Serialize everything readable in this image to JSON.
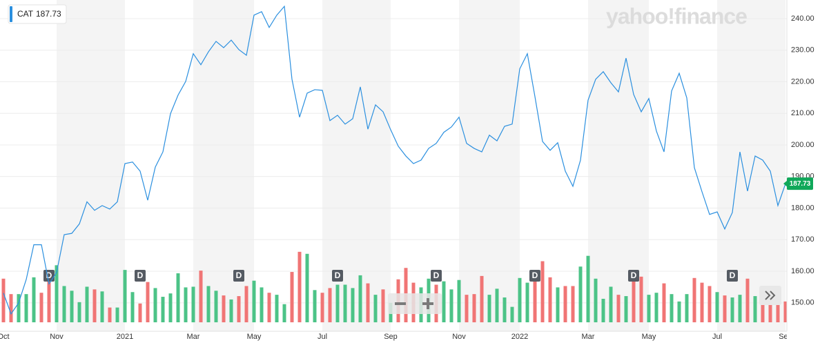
{
  "chart_data": {
    "type": "line",
    "watermark": "yahoo!finance",
    "categories": [
      "Oct",
      null,
      null,
      null,
      null,
      null,
      null,
      "Nov",
      null,
      null,
      null,
      null,
      null,
      null,
      null,
      null,
      "2021",
      null,
      null,
      null,
      null,
      null,
      null,
      null,
      null,
      "Mar",
      null,
      null,
      null,
      null,
      null,
      null,
      null,
      "May",
      null,
      null,
      null,
      null,
      null,
      null,
      null,
      null,
      "Jul",
      null,
      null,
      null,
      null,
      null,
      null,
      null,
      null,
      "Sep",
      null,
      null,
      null,
      null,
      null,
      null,
      null,
      null,
      "Nov",
      null,
      null,
      null,
      null,
      null,
      null,
      null,
      "2022",
      null,
      null,
      null,
      null,
      null,
      null,
      null,
      null,
      "Mar",
      null,
      null,
      null,
      null,
      null,
      null,
      null,
      "May",
      null,
      null,
      null,
      null,
      null,
      null,
      null,
      null,
      "Jul",
      null,
      null,
      null,
      null,
      null,
      null,
      null,
      null,
      "Sep"
    ],
    "series": [
      {
        "name": "CAT",
        "color": "#2a8fdf",
        "values": [
          153.1,
          146.5,
          150,
          157.4,
          168.4,
          168.4,
          156,
          159.6,
          171.6,
          172,
          175,
          182,
          179.3,
          180.8,
          179.7,
          182,
          194.1,
          194.6,
          191.7,
          182.5,
          193,
          197.8,
          209.9,
          215.8,
          220.1,
          228.9,
          225.4,
          229.5,
          232.8,
          230.8,
          233.2,
          230.2,
          228.4,
          241.1,
          242.2,
          237.2,
          241.1,
          243.9,
          220.8,
          208.8,
          216.4,
          217.5,
          217.3,
          207.7,
          209.4,
          206.6,
          208.3,
          218.4,
          205,
          212.7,
          210.5,
          204.8,
          199.6,
          196.5,
          194.1,
          195.2,
          198.9,
          200.5,
          204,
          205.7,
          208.8,
          200.5,
          198.9,
          197.8,
          203.1,
          201.3,
          205.9,
          206.6,
          224.1,
          228.9,
          215.3,
          201.1,
          198.3,
          200.7,
          191.7,
          186.9,
          195.2,
          214.2,
          220.8,
          223.2,
          219.7,
          216.8,
          227.5,
          216,
          210.5,
          214.7,
          204.4,
          197.8,
          217.1,
          222.7,
          214.9,
          192.8,
          185.2,
          178,
          178.8,
          173.4,
          178.6,
          197.8,
          185.4,
          196.5,
          195.2,
          191.7,
          180.8,
          187.73
        ]
      }
    ],
    "last_price_color": "#10a85a",
    "volume": {
      "ylim": [
        0,
        110
      ],
      "values": [
        65,
        42,
        42,
        42,
        67,
        44,
        62,
        85,
        54,
        47,
        30,
        53,
        49,
        46,
        22,
        22,
        78,
        45,
        28,
        60,
        51,
        38,
        43,
        73,
        52,
        53,
        77,
        54,
        47,
        40,
        34,
        39,
        54,
        62,
        52,
        44,
        41,
        27,
        75,
        105,
        102,
        48,
        44,
        51,
        56,
        56,
        51,
        70,
        58,
        41,
        49,
        29,
        64,
        81,
        59,
        52,
        65,
        56,
        61,
        49,
        63,
        41,
        42,
        69,
        41,
        50,
        37,
        23,
        66,
        59,
        71,
        91,
        67,
        52,
        54,
        54,
        83,
        99,
        65,
        35,
        53,
        41,
        39,
        70,
        68,
        41,
        44,
        58,
        42,
        31,
        42,
        66,
        59,
        54,
        45,
        40,
        37,
        41,
        65,
        39,
        30,
        31,
        31,
        31
      ],
      "colors": [
        "#f07575",
        "#f07575",
        "#4cc387",
        "#4cc387",
        "#4cc387",
        "#f07575",
        "#f07575",
        "#4cc387",
        "#4cc387",
        "#4cc387",
        "#4cc387",
        "#4cc387",
        "#f07575",
        "#4cc387",
        "#f07575",
        "#4cc387",
        "#4cc387",
        "#4cc387",
        "#f07575",
        "#f07575",
        "#4cc387",
        "#4cc387",
        "#4cc387",
        "#4cc387",
        "#4cc387",
        "#4cc387",
        "#f07575",
        "#4cc387",
        "#4cc387",
        "#f07575",
        "#4cc387",
        "#f07575",
        "#f07575",
        "#4cc387",
        "#4cc387",
        "#f07575",
        "#4cc387",
        "#4cc387",
        "#f07575",
        "#f07575",
        "#4cc387",
        "#4cc387",
        "#f07575",
        "#f07575",
        "#4cc387",
        "#4cc387",
        "#4cc387",
        "#4cc387",
        "#f07575",
        "#4cc387",
        "#f07575",
        "#4cc387",
        "#f07575",
        "#f07575",
        "#f07575",
        "#4cc387",
        "#4cc387",
        "#f07575",
        "#4cc387",
        "#4cc387",
        "#4cc387",
        "#f07575",
        "#f07575",
        "#f07575",
        "#4cc387",
        "#4cc387",
        "#4cc387",
        "#4cc387",
        "#4cc387",
        "#4cc387",
        "#f07575",
        "#f07575",
        "#f07575",
        "#4cc387",
        "#f07575",
        "#f07575",
        "#4cc387",
        "#4cc387",
        "#4cc387",
        "#4cc387",
        "#4cc387",
        "#f07575",
        "#4cc387",
        "#f07575",
        "#f07575",
        "#4cc387",
        "#4cc387",
        "#f07575",
        "#4cc387",
        "#4cc387",
        "#4cc387",
        "#f07575",
        "#f07575",
        "#f07575",
        "#4cc387",
        "#f07575",
        "#4cc387",
        "#4cc387",
        "#f07575",
        "#4cc387",
        "#f07575",
        "#f07575",
        "#f07575",
        "#f07575"
      ]
    },
    "dividends": [
      null,
      null,
      null,
      null,
      null,
      null,
      "D",
      null,
      null,
      null,
      null,
      null,
      null,
      null,
      null,
      null,
      null,
      null,
      "D",
      null,
      null,
      null,
      null,
      null,
      null,
      null,
      null,
      null,
      null,
      null,
      null,
      "D",
      null,
      null,
      null,
      null,
      null,
      null,
      null,
      null,
      null,
      null,
      null,
      null,
      "D",
      null,
      null,
      null,
      null,
      null,
      null,
      null,
      null,
      null,
      null,
      null,
      null,
      "D",
      null,
      null,
      null,
      null,
      null,
      null,
      null,
      null,
      null,
      null,
      null,
      null,
      "D",
      null,
      null,
      null,
      null,
      null,
      null,
      null,
      null,
      null,
      null,
      null,
      null,
      "D",
      null,
      null,
      null,
      null,
      null,
      null,
      null,
      null,
      null,
      null,
      null,
      null,
      "D",
      null,
      null,
      null,
      null,
      null,
      null,
      null
    ],
    "ylim": [
      141,
      245.9
    ],
    "yticks": [
      {
        "value": 150,
        "label": "150.00"
      },
      {
        "value": 160,
        "label": "160.00"
      },
      {
        "value": 170,
        "label": "170.00"
      },
      {
        "value": 180,
        "label": "180.00"
      },
      {
        "value": 190,
        "label": "190.00"
      },
      {
        "value": 200,
        "label": "200.00"
      },
      {
        "value": 210,
        "label": "210.00"
      },
      {
        "value": 220,
        "label": "220.00"
      },
      {
        "value": 230,
        "label": "230.00"
      },
      {
        "value": 240,
        "label": "240.00"
      }
    ],
    "grid": true
  }
}
